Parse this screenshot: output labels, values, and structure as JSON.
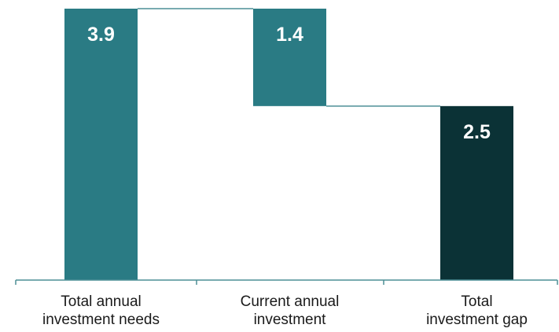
{
  "chart_data": {
    "type": "bar",
    "subtype": "waterfall",
    "title": "",
    "xlabel": "",
    "ylabel": "",
    "categories": [
      [
        "Total annual",
        "investment needs"
      ],
      [
        "Current annual",
        "investment"
      ],
      [
        "Total",
        "investment gap"
      ]
    ],
    "values": [
      3.9,
      1.4,
      2.5
    ],
    "value_labels": [
      "3.9",
      "1.4",
      "2.5"
    ],
    "bar_kinds": [
      "total",
      "decrease",
      "result"
    ],
    "colors": {
      "total": "#2a7b84",
      "decrease": "#2a7b84",
      "result": "#0b3236",
      "connector": "#4d8f96",
      "axis": "#4d8f96"
    },
    "ylim": [
      0,
      3.9
    ],
    "grid": false,
    "legend": "none"
  }
}
